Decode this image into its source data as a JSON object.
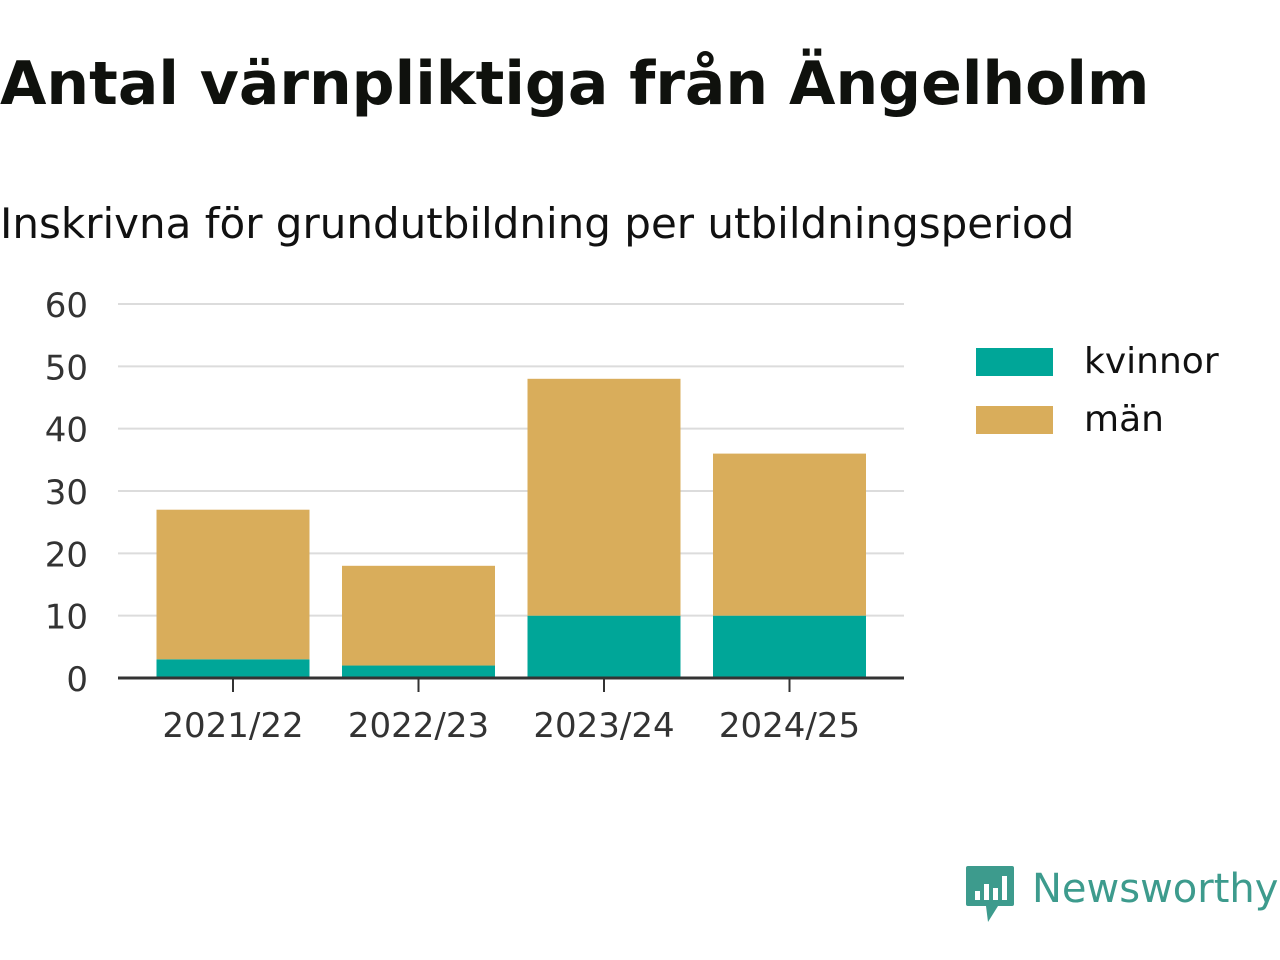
{
  "title": "Antal värnpliktiga från Ängelholm",
  "subtitle": "Inskrivna för grundutbildning per utbildningsperiod",
  "brand": {
    "name": "Newsworthy",
    "icon": "newsworthy-logo-icon",
    "color": "#3d9b8d"
  },
  "legend": [
    {
      "label": "kvinnor",
      "color": "#00a698"
    },
    {
      "label": "män",
      "color": "#d9ad5b"
    }
  ],
  "chart_data": {
    "type": "bar",
    "stacked": true,
    "categories": [
      "2021/22",
      "2022/23",
      "2023/24",
      "2024/25"
    ],
    "series": [
      {
        "name": "kvinnor",
        "values": [
          3,
          2,
          10,
          10
        ],
        "color": "#00a698"
      },
      {
        "name": "män",
        "values": [
          24,
          16,
          38,
          26
        ],
        "color": "#d9ad5b"
      }
    ],
    "title": "Antal värnpliktiga från Ängelholm",
    "subtitle": "Inskrivna för grundutbildning per utbildningsperiod",
    "xlabel": "",
    "ylabel": "",
    "ylim": [
      0,
      60
    ],
    "yticks": [
      0,
      10,
      20,
      30,
      40,
      50,
      60
    ],
    "grid": true,
    "legend_position": "right"
  }
}
